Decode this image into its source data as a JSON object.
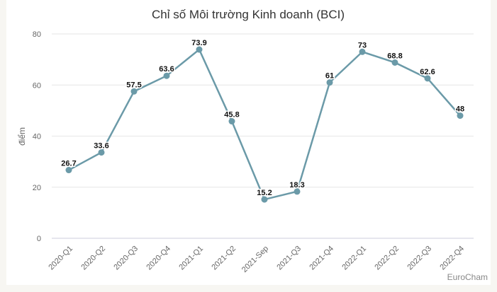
{
  "chart_data": {
    "type": "line",
    "title": "Chỉ số Môi trường Kinh doanh (BCI)",
    "ylabel": "điểm",
    "xlabel": "",
    "credit": "EuroCham",
    "ylim": [
      0,
      80
    ],
    "yticks": [
      0,
      20,
      40,
      60,
      80
    ],
    "categories": [
      "2020-Q1",
      "2020-Q2",
      "2020-Q3",
      "2020-Q4",
      "2021-Q1",
      "2021-Q2",
      "2021-Sep",
      "2021-Q3",
      "2021-Q4",
      "2022-Q1",
      "2022-Q2",
      "2022-Q3",
      "2022-Q4"
    ],
    "values": [
      26.7,
      33.6,
      57.5,
      63.6,
      73.9,
      45.8,
      15.2,
      18.3,
      61,
      73,
      68.8,
      62.6,
      48
    ],
    "color": "#6b9aa8",
    "grid": true
  }
}
